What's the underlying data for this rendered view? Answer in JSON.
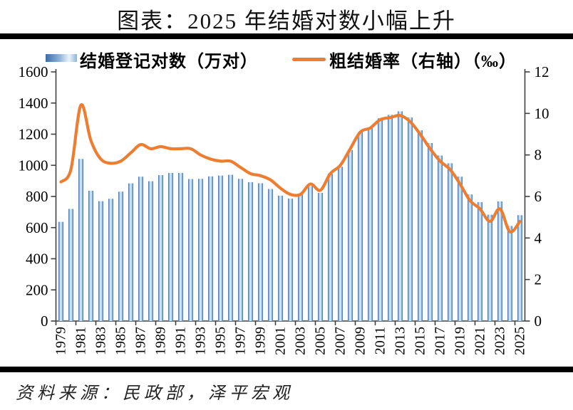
{
  "title": "图表：2025 年结婚对数小幅上升",
  "legend": {
    "bars_label": "结婚登记对数（万对）",
    "line_label": "粗结婚率（右轴）（‰）"
  },
  "source": "资料来源：民政部，泽平宏观",
  "colors": {
    "bar_edge": "#3C6DA6",
    "bar_mid": "#8FB4DA",
    "bar_center": "#ECF3FA",
    "line": "#ED7D31",
    "axis": "#404040",
    "rule": "#000000"
  },
  "chart_data": {
    "type": "bar+line",
    "title": "图表：2025 年结婚对数小幅上升",
    "years": [
      1979,
      1980,
      1981,
      1982,
      1983,
      1984,
      1985,
      1986,
      1987,
      1988,
      1989,
      1990,
      1991,
      1992,
      1993,
      1994,
      1995,
      1996,
      1997,
      1998,
      1999,
      2000,
      2001,
      2002,
      2003,
      2004,
      2005,
      2006,
      2007,
      2008,
      2009,
      2010,
      2011,
      2012,
      2013,
      2014,
      2015,
      2016,
      2017,
      2018,
      2019,
      2020,
      2021,
      2022,
      2023,
      2024,
      2025
    ],
    "x_tick_labels": [
      "1979",
      "1981",
      "1983",
      "1985",
      "1987",
      "1989",
      "1991",
      "1993",
      "1995",
      "1997",
      "1999",
      "2001",
      "2003",
      "2005",
      "2007",
      "2009",
      "2011",
      "2013",
      "2015",
      "2017",
      "2019",
      "2021",
      "2023",
      "2025"
    ],
    "series": [
      {
        "name": "结婚登记对数（万对）",
        "type": "bar",
        "axis": "left",
        "values": [
          637,
          720,
          1041,
          837,
          770,
          785,
          831,
          884,
          927,
          898,
          937,
          951,
          951,
          912,
          913,
          929,
          934,
          939,
          913,
          892,
          885,
          848,
          805,
          786,
          811,
          867,
          823,
          945,
          991,
          1098,
          1212,
          1241,
          1302,
          1324,
          1347,
          1307,
          1225,
          1143,
          1063,
          1013,
          927,
          813,
          764,
          683,
          768,
          611,
          680
        ]
      },
      {
        "name": "粗结婚率（右轴）（‰）",
        "type": "line",
        "axis": "right",
        "values": [
          6.7,
          7.3,
          10.4,
          8.7,
          7.8,
          7.6,
          7.7,
          8.1,
          8.5,
          8.3,
          8.4,
          8.3,
          8.3,
          8.3,
          8.0,
          7.8,
          7.7,
          7.7,
          7.4,
          7.1,
          7.0,
          6.8,
          6.4,
          6.1,
          6.1,
          6.6,
          6.3,
          7.1,
          7.5,
          8.3,
          9.1,
          9.3,
          9.7,
          9.8,
          9.9,
          9.6,
          9.0,
          8.3,
          7.7,
          7.3,
          6.6,
          5.8,
          5.4,
          4.8,
          5.4,
          4.3,
          4.8
        ]
      }
    ],
    "left_axis": {
      "min": 0,
      "max": 1600,
      "step": 200,
      "tick_labels": [
        "0",
        "200",
        "400",
        "600",
        "800",
        "1000",
        "1200",
        "1400",
        "1600"
      ]
    },
    "right_axis": {
      "min": 0,
      "max": 12,
      "step": 2,
      "tick_labels": [
        "0",
        "2",
        "4",
        "6",
        "8",
        "10",
        "12"
      ]
    },
    "grid": false,
    "legend_position": "top"
  }
}
